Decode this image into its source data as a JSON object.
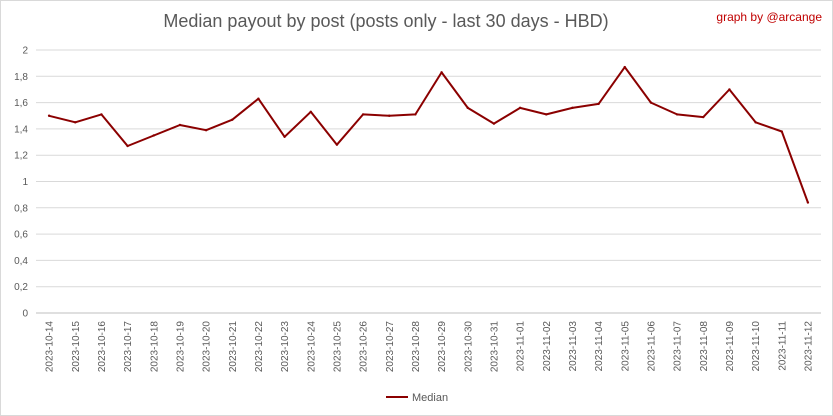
{
  "header": {
    "title": "Median payout by post (posts only - last 30 days - HBD)",
    "credit": "graph by @arcange"
  },
  "chart_data": {
    "type": "line",
    "title": "Median payout by post (posts only - last 30 days - HBD)",
    "xlabel": "",
    "ylabel": "",
    "ylim": [
      0,
      2
    ],
    "y_ticks": [
      "0",
      "0,2",
      "0,4",
      "0,6",
      "0,8",
      "1",
      "1,2",
      "1,4",
      "1,6",
      "1,8",
      "2"
    ],
    "grid": true,
    "legend_position": "bottom",
    "categories": [
      "2023-10-14",
      "2023-10-15",
      "2023-10-16",
      "2023-10-17",
      "2023-10-18",
      "2023-10-19",
      "2023-10-20",
      "2023-10-21",
      "2023-10-22",
      "2023-10-23",
      "2023-10-24",
      "2023-10-25",
      "2023-10-26",
      "2023-10-27",
      "2023-10-28",
      "2023-10-29",
      "2023-10-30",
      "2023-10-31",
      "2023-11-01",
      "2023-11-02",
      "2023-11-03",
      "2023-11-04",
      "2023-11-05",
      "2023-11-06",
      "2023-11-07",
      "2023-11-08",
      "2023-11-09",
      "2023-11-10",
      "2023-11-11",
      "2023-11-12"
    ],
    "series": [
      {
        "name": "Median",
        "color": "#8b0000",
        "values": [
          1.5,
          1.45,
          1.51,
          1.27,
          1.35,
          1.43,
          1.39,
          1.47,
          1.63,
          1.34,
          1.53,
          1.28,
          1.51,
          1.5,
          1.51,
          1.83,
          1.56,
          1.44,
          1.56,
          1.51,
          1.56,
          1.59,
          1.87,
          1.6,
          1.51,
          1.49,
          1.7,
          1.45,
          1.38,
          0.84
        ]
      }
    ]
  }
}
